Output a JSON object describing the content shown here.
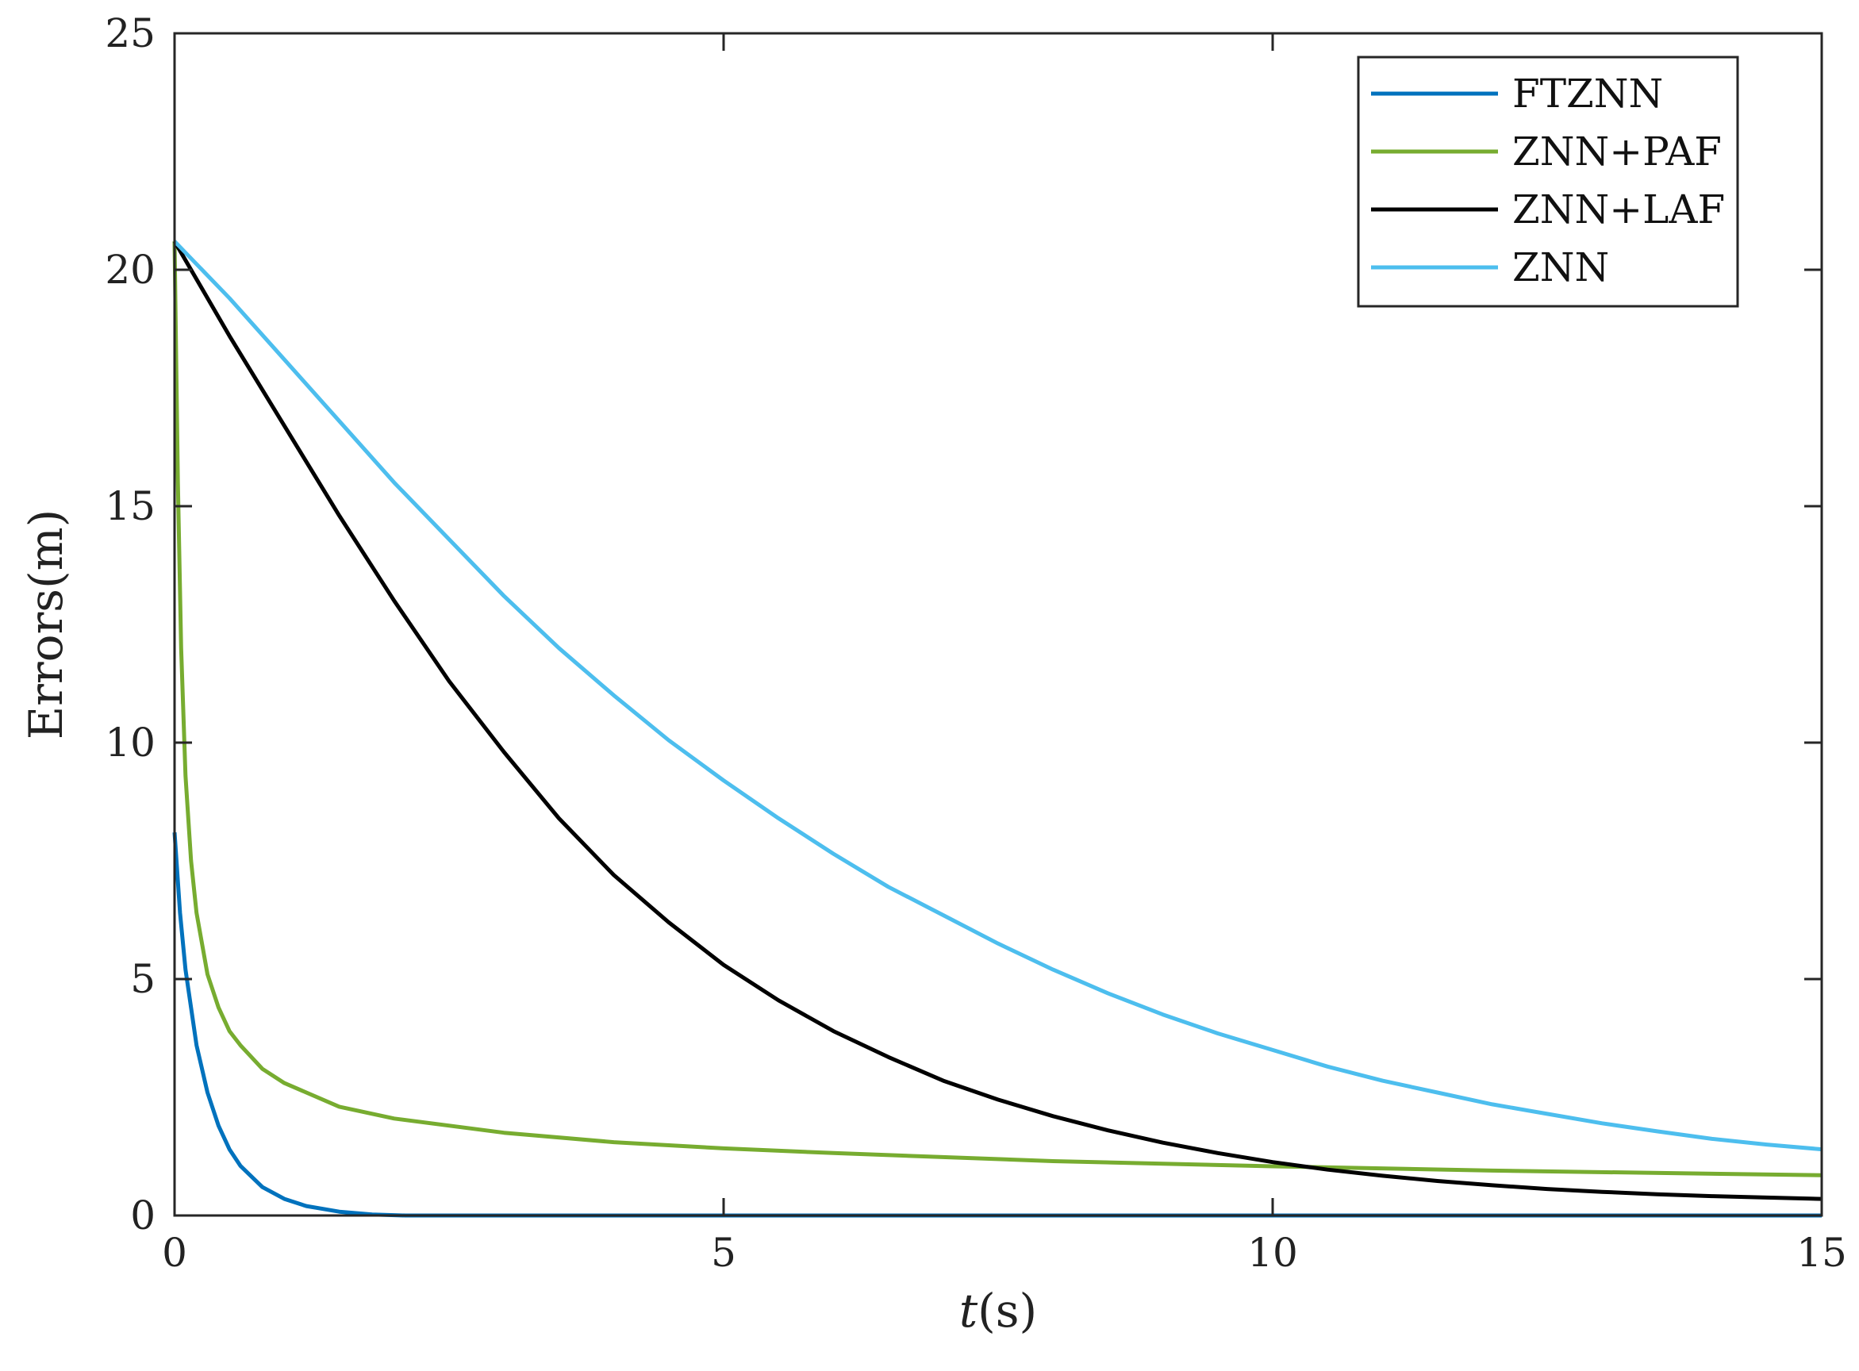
{
  "chart_data": {
    "type": "line",
    "title": "",
    "xlabel": "t(s)",
    "xlabel_parts": {
      "var": "t",
      "unit": "(s)"
    },
    "ylabel": "Errors(m)",
    "xlim": [
      0,
      15
    ],
    "ylim": [
      0,
      25
    ],
    "xticks": [
      "0",
      "5",
      "10",
      "15"
    ],
    "yticks": [
      "0",
      "5",
      "10",
      "15",
      "20",
      "25"
    ],
    "grid": false,
    "legend_position": "top-right",
    "series": [
      {
        "name": "FTZNN",
        "color": "#0072BD",
        "x": [
          0,
          0.05,
          0.1,
          0.2,
          0.3,
          0.4,
          0.5,
          0.6,
          0.8,
          1.0,
          1.2,
          1.5,
          1.8,
          2.1,
          2.5,
          3,
          4,
          6,
          8,
          10,
          12,
          15
        ],
        "y": [
          8.1,
          6.4,
          5.2,
          3.6,
          2.6,
          1.9,
          1.4,
          1.05,
          0.6,
          0.35,
          0.2,
          0.08,
          0.02,
          0.0,
          0.0,
          0.0,
          0.0,
          0.0,
          0.0,
          0.0,
          0.0,
          0.0
        ]
      },
      {
        "name": "ZNN+PAF",
        "color": "#77AC30",
        "x": [
          0,
          0.03,
          0.06,
          0.1,
          0.15,
          0.2,
          0.3,
          0.4,
          0.5,
          0.6,
          0.8,
          1.0,
          1.5,
          2,
          3,
          4,
          5,
          6,
          8,
          10,
          12,
          15
        ],
        "y": [
          20.6,
          15.5,
          12.0,
          9.3,
          7.5,
          6.4,
          5.1,
          4.4,
          3.9,
          3.6,
          3.1,
          2.8,
          2.3,
          2.05,
          1.75,
          1.55,
          1.42,
          1.32,
          1.15,
          1.04,
          0.95,
          0.85
        ]
      },
      {
        "name": "ZNN+LAF",
        "color": "#000000",
        "x": [
          0,
          0.5,
          1,
          1.5,
          2,
          2.5,
          3,
          3.5,
          4,
          4.5,
          5,
          5.5,
          6,
          6.5,
          7,
          7.5,
          8,
          8.5,
          9,
          9.5,
          10,
          10.5,
          11,
          11.5,
          12,
          12.5,
          13,
          13.5,
          14,
          14.5,
          15
        ],
        "y": [
          20.6,
          18.6,
          16.7,
          14.8,
          13.0,
          11.3,
          9.8,
          8.4,
          7.2,
          6.2,
          5.3,
          4.55,
          3.9,
          3.35,
          2.85,
          2.45,
          2.1,
          1.8,
          1.54,
          1.32,
          1.13,
          0.97,
          0.84,
          0.73,
          0.64,
          0.56,
          0.5,
          0.45,
          0.41,
          0.38,
          0.35
        ]
      },
      {
        "name": "ZNN",
        "color": "#4DBEEE",
        "x": [
          0,
          0.5,
          1,
          1.5,
          2,
          2.5,
          3,
          3.5,
          4,
          4.5,
          5,
          5.5,
          6,
          6.5,
          7,
          7.5,
          8,
          8.5,
          9,
          9.5,
          10,
          10.5,
          11,
          11.5,
          12,
          12.5,
          13,
          13.5,
          14,
          14.5,
          15
        ],
        "y": [
          20.6,
          19.4,
          18.1,
          16.8,
          15.5,
          14.3,
          13.1,
          12.0,
          11.0,
          10.05,
          9.2,
          8.4,
          7.65,
          6.95,
          6.35,
          5.75,
          5.2,
          4.7,
          4.25,
          3.85,
          3.5,
          3.15,
          2.85,
          2.6,
          2.35,
          2.15,
          1.95,
          1.78,
          1.62,
          1.5,
          1.4
        ]
      }
    ]
  }
}
